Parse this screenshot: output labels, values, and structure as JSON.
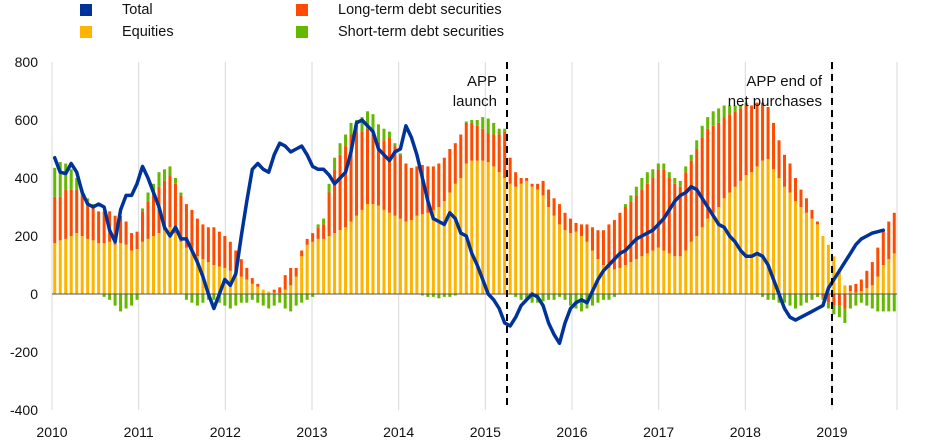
{
  "chart_data": {
    "type": "bar",
    "stacked": true,
    "legend": [
      {
        "label": "Total",
        "color": "#003399",
        "marker": "square"
      },
      {
        "label": "Equities",
        "color": "#FFB400",
        "marker": "square"
      },
      {
        "label": "Long-term debt securities",
        "color": "#FF4B00",
        "marker": "square"
      },
      {
        "label": "Short-term debt securities",
        "color": "#65B800",
        "marker": "square"
      }
    ],
    "legend_placement": "top",
    "colors": {
      "total": "#003399",
      "equities": "#FFB400",
      "long_term": "#FF4B00",
      "short_term": "#65B800",
      "grid": "#d9d9d9"
    },
    "ylim": [
      -400,
      800
    ],
    "yticks": [
      -400,
      -200,
      0,
      200,
      400,
      600,
      800
    ],
    "xlim": [
      2010,
      2019.75
    ],
    "xticks": [
      2010,
      2011,
      2012,
      2013,
      2014,
      2015,
      2016,
      2017,
      2018,
      2019
    ],
    "grid": {
      "vertical": true,
      "horizontal": false
    },
    "annotations": [
      {
        "label_lines": [
          "APP",
          "launch"
        ],
        "x": 2015.25
      },
      {
        "label_lines": [
          "APP end of",
          "net purchases"
        ],
        "x": 2019.0
      }
    ],
    "series": [
      {
        "name": "Equities",
        "values": [
          175,
          185,
          190,
          200,
          210,
          200,
          190,
          185,
          175,
          175,
          180,
          170,
          175,
          170,
          150,
          155,
          180,
          190,
          200,
          210,
          220,
          230,
          210,
          180,
          160,
          150,
          130,
          120,
          110,
          100,
          95,
          90,
          80,
          70,
          60,
          50,
          35,
          25,
          15,
          8,
          5,
          3,
          15,
          30,
          60,
          130,
          170,
          180,
          190,
          190,
          200,
          210,
          220,
          230,
          250,
          270,
          290,
          310,
          310,
          305,
          290,
          280,
          270,
          260,
          250,
          255,
          270,
          275,
          280,
          290,
          300,
          320,
          350,
          380,
          400,
          450,
          460,
          460,
          460,
          455,
          440,
          420,
          400,
          380,
          370,
          380,
          390,
          370,
          360,
          340,
          300,
          270,
          240,
          220,
          210,
          215,
          200,
          180,
          150,
          120,
          100,
          90,
          85,
          90,
          100,
          110,
          120,
          130,
          140,
          150,
          160,
          150,
          140,
          130,
          130,
          150,
          180,
          200,
          230,
          260,
          280,
          300,
          330,
          350,
          370,
          390,
          410,
          420,
          440,
          460,
          465,
          430,
          400,
          370,
          350,
          320,
          300,
          280,
          260,
          240,
          200,
          170,
          130,
          80,
          30,
          10,
          5,
          10,
          20,
          30,
          60,
          100,
          120,
          140
        ]
      },
      {
        "name": "Long-term debt securities",
        "values": [
          160,
          150,
          170,
          160,
          150,
          140,
          130,
          120,
          110,
          110,
          105,
          100,
          95,
          80,
          60,
          60,
          105,
          130,
          140,
          160,
          170,
          180,
          170,
          160,
          150,
          140,
          130,
          120,
          120,
          130,
          120,
          110,
          100,
          80,
          60,
          40,
          20,
          10,
          0,
          0,
          10,
          20,
          50,
          60,
          30,
          20,
          20,
          30,
          40,
          50,
          150,
          220,
          260,
          280,
          300,
          290,
          270,
          260,
          240,
          220,
          240,
          260,
          240,
          220,
          200,
          180,
          170,
          170,
          160,
          150,
          150,
          150,
          150,
          140,
          150,
          140,
          130,
          120,
          110,
          100,
          110,
          130,
          160,
          90,
          50,
          20,
          10,
          10,
          20,
          50,
          60,
          60,
          70,
          60,
          50,
          30,
          40,
          60,
          80,
          100,
          120,
          150,
          170,
          190,
          200,
          210,
          220,
          230,
          240,
          250,
          270,
          280,
          260,
          250,
          240,
          270,
          280,
          300,
          310,
          310,
          300,
          290,
          280,
          270,
          260,
          250,
          240,
          230,
          220,
          200,
          180,
          160,
          130,
          110,
          100,
          80,
          60,
          50,
          30,
          10,
          -10,
          -30,
          -40,
          -40,
          -50,
          20,
          30,
          40,
          60,
          80,
          100,
          120,
          130,
          140
        ]
      },
      {
        "name": "Short-term debt securities",
        "values": [
          100,
          120,
          90,
          70,
          40,
          20,
          10,
          5,
          0,
          -10,
          -20,
          -40,
          -60,
          -50,
          -40,
          -20,
          10,
          30,
          40,
          50,
          40,
          30,
          20,
          10,
          -20,
          -30,
          -40,
          -30,
          -20,
          -20,
          -30,
          -40,
          -50,
          -40,
          -30,
          -30,
          -20,
          -30,
          -40,
          -50,
          -40,
          -30,
          -50,
          -60,
          -40,
          -30,
          -20,
          -10,
          10,
          20,
          30,
          40,
          40,
          40,
          40,
          40,
          50,
          60,
          70,
          60,
          40,
          20,
          10,
          5,
          0,
          0,
          0,
          -5,
          -10,
          -10,
          -15,
          -10,
          -10,
          -5,
          0,
          5,
          10,
          20,
          40,
          50,
          40,
          20,
          10,
          0,
          -10,
          -20,
          -20,
          -30,
          -30,
          -25,
          -20,
          -20,
          -10,
          -20,
          -40,
          -50,
          -60,
          -50,
          -40,
          -30,
          -20,
          -20,
          -10,
          0,
          10,
          20,
          30,
          40,
          40,
          30,
          20,
          20,
          20,
          20,
          20,
          20,
          20,
          30,
          40,
          40,
          50,
          50,
          40,
          30,
          20,
          10,
          10,
          0,
          0,
          -10,
          -20,
          -20,
          -30,
          -30,
          -40,
          -50,
          -40,
          -30,
          -20,
          -10,
          -10,
          -20,
          -30,
          -40,
          -50,
          -50,
          -40,
          -30,
          -40,
          -50,
          -60,
          -60,
          -60,
          -60,
          -60,
          -70,
          -70,
          -70,
          -70
        ]
      },
      {
        "name": "Total",
        "values": [
          470,
          420,
          415,
          450,
          420,
          350,
          310,
          300,
          310,
          300,
          220,
          180,
          290,
          340,
          340,
          380,
          440,
          400,
          350,
          300,
          230,
          200,
          230,
          190,
          190,
          150,
          110,
          60,
          0,
          -50,
          0,
          50,
          30,
          70,
          200,
          320,
          430,
          450,
          430,
          420,
          480,
          520,
          510,
          490,
          500,
          510,
          480,
          440,
          430,
          430,
          410,
          380,
          400,
          420,
          490,
          590,
          600,
          580,
          560,
          500,
          480,
          460,
          490,
          500,
          580,
          540,
          480,
          400,
          320,
          260,
          250,
          240,
          280,
          260,
          210,
          200,
          140,
          100,
          50,
          0,
          -20,
          -50,
          -100,
          -110,
          -80,
          -40,
          -20,
          0,
          -10,
          -40,
          -100,
          -140,
          -170,
          -100,
          -50,
          -30,
          -20,
          -30,
          10,
          50,
          80,
          100,
          120,
          140,
          150,
          170,
          190,
          200,
          210,
          220,
          240,
          260,
          290,
          320,
          340,
          350,
          370,
          360,
          330,
          300,
          270,
          240,
          230,
          200,
          180,
          150,
          130,
          130,
          140,
          130,
          100,
          50,
          0,
          -50,
          -80,
          -90,
          -80,
          -70,
          -60,
          -50,
          -40,
          20,
          50,
          80,
          110,
          140,
          170,
          190,
          200,
          210,
          215,
          220
        ]
      }
    ]
  }
}
